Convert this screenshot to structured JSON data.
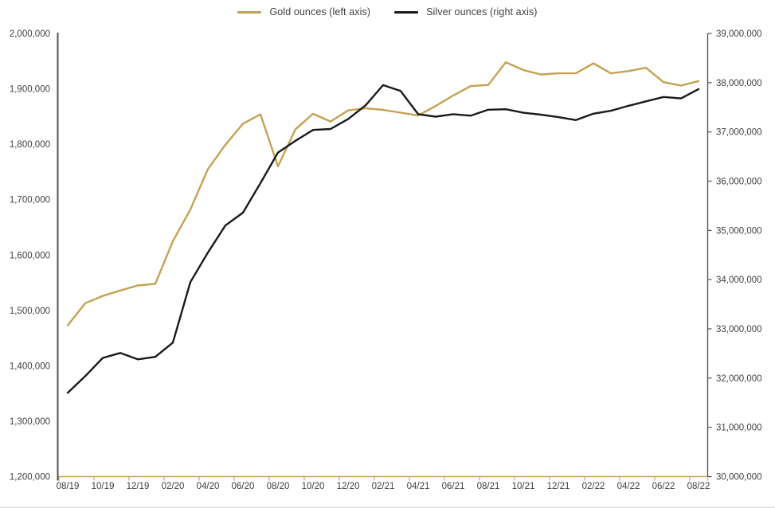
{
  "legend": [
    {
      "label": "Gold ounces (left axis)",
      "color": "#C3A253"
    },
    {
      "label": "Silver ounces (right axis)",
      "color": "#1A1A1A"
    }
  ],
  "colors": {
    "axis_line": "#555555",
    "x_axis_line": "#C9A95F",
    "tick_label": "#3F3F3F",
    "bottom_separator": "#D9D9D9",
    "background": "#FFFFFF"
  },
  "chart_data": {
    "type": "line",
    "title": "",
    "grid": false,
    "legend_position": "top",
    "categories": [
      "08/19",
      "09/19",
      "10/19",
      "11/19",
      "12/19",
      "01/20",
      "02/20",
      "03/20",
      "04/20",
      "05/20",
      "06/20",
      "07/20",
      "08/20",
      "09/20",
      "10/20",
      "11/20",
      "12/20",
      "01/21",
      "02/21",
      "03/21",
      "04/21",
      "05/21",
      "06/21",
      "07/21",
      "08/21",
      "09/21",
      "10/21",
      "11/21",
      "12/21",
      "01/22",
      "02/22",
      "03/22",
      "04/22",
      "05/22",
      "06/22",
      "07/22",
      "08/22"
    ],
    "x_label_every": 2,
    "x_tick_labels": [
      "08/19",
      "10/19",
      "12/19",
      "02/20",
      "04/20",
      "06/20",
      "08/20",
      "10/20",
      "12/20",
      "02/21",
      "04/21",
      "06/21",
      "08/21",
      "10/21",
      "12/21",
      "02/22",
      "04/22",
      "06/22",
      "08/22"
    ],
    "left_axis": {
      "min": 1200000,
      "max": 2000000,
      "step": 100000,
      "tick_labels": [
        "2,000,000",
        "1,900,000",
        "1,800,000",
        "1,700,000",
        "1,600,000",
        "1,500,000",
        "1,400,000",
        "1,300,000",
        "1,200,000"
      ]
    },
    "right_axis": {
      "min": 30000000,
      "max": 39000000,
      "step": 1000000,
      "tick_labels": [
        "39,000,000",
        "38,000,000",
        "37,000,000",
        "36,000,000",
        "35,000,000",
        "34,000,000",
        "33,000,000",
        "32,000,000",
        "31,000,000",
        "30,000,000"
      ]
    },
    "series": [
      {
        "name": "Gold ounces (left axis)",
        "axis": "left",
        "color": "#C3A253",
        "values": [
          1473000,
          1513000,
          1526000,
          1536000,
          1545000,
          1548000,
          1625000,
          1682000,
          1755000,
          1799000,
          1837000,
          1854000,
          1760000,
          1827000,
          1855000,
          1841000,
          1861000,
          1865000,
          1862000,
          1857000,
          1852000,
          1869000,
          1888000,
          1905000,
          1907000,
          1948000,
          1934000,
          1926000,
          1928000,
          1928000,
          1946000,
          1928000,
          1932000,
          1938000,
          1912000,
          1906000,
          1914000
        ]
      },
      {
        "name": "Silver ounces (right axis)",
        "axis": "right",
        "color": "#1A1A1A",
        "values": [
          31700000,
          32040000,
          32410000,
          32510000,
          32380000,
          32430000,
          32720000,
          33950000,
          34550000,
          35100000,
          35360000,
          35960000,
          36580000,
          36820000,
          37040000,
          37060000,
          37260000,
          37540000,
          37950000,
          37830000,
          37360000,
          37310000,
          37360000,
          37330000,
          37450000,
          37460000,
          37390000,
          37350000,
          37300000,
          37240000,
          37370000,
          37430000,
          37530000,
          37620000,
          37710000,
          37680000,
          37870000
        ]
      }
    ]
  }
}
